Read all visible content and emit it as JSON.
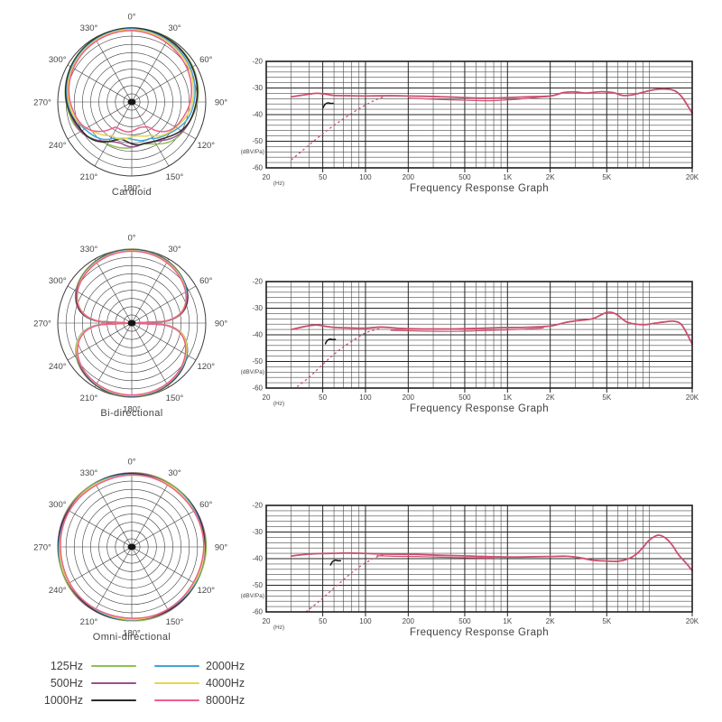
{
  "colors": {
    "grid": "#4b4b4b",
    "grid_major": "#242424",
    "frame": "#1d1d1d",
    "text": "#454545",
    "response_curve": "#cb4f6e",
    "marker": "#111111"
  },
  "legend": {
    "rows": [
      [
        {
          "label": "125Hz",
          "color": "#8fc054"
        },
        {
          "label": "2000Hz",
          "color": "#3fa5d8"
        }
      ],
      [
        {
          "label": "500Hz",
          "color": "#99508f"
        },
        {
          "label": "4000Hz",
          "color": "#e9d44f"
        }
      ],
      [
        {
          "label": "1000Hz",
          "color": "#2d2a2b"
        },
        {
          "label": "8000Hz",
          "color": "#ec5f8b"
        }
      ]
    ]
  },
  "chart_data": [
    {
      "type": "polar",
      "subtype": "cardioid",
      "title": "Cardioid",
      "rings": 9,
      "range_db": 45,
      "angle_labels": [
        "0°",
        "30°",
        "60°",
        "90°",
        "120°",
        "150°",
        "180°",
        "210°",
        "240°",
        "270°",
        "300°",
        "330°"
      ],
      "series": [
        {
          "name": "125Hz",
          "color": "#8fc054",
          "a": 0.56,
          "rear_db": -18,
          "scale": 1.0,
          "wig": 0.03,
          "asym": 0,
          "reardip": 0,
          "phase": 0.5
        },
        {
          "name": "500Hz",
          "color": "#99508f",
          "a": 0.55,
          "rear_db": -19,
          "scale": 0.996,
          "wig": 0.032,
          "asym": 0.005,
          "reardip": 0,
          "phase": 1.7
        },
        {
          "name": "1000Hz",
          "color": "#2d2a2b",
          "a": 0.54,
          "rear_db": -20,
          "scale": 1.0,
          "wig": 0.035,
          "asym": 0.01,
          "reardip": 0,
          "phase": 2.9
        },
        {
          "name": "2000Hz",
          "color": "#3fa5d8",
          "a": 0.52,
          "rear_db": -21,
          "scale": 0.988,
          "wig": 0.03,
          "asym": 0.025,
          "reardip": 0,
          "phase": 4.1
        },
        {
          "name": "4000Hz",
          "color": "#e9d44f",
          "a": 0.505,
          "rear_db": -22,
          "scale": 0.978,
          "wig": 0.035,
          "asym": 0.035,
          "reardip": 0,
          "phase": 5.3
        },
        {
          "name": "8000Hz",
          "color": "#ec5f8b",
          "a": 0.49,
          "rear_db": -23.5,
          "scale": 0.965,
          "wig": 0.032,
          "asym": 0.05,
          "reardip": 0.09,
          "phase": 0.9
        }
      ]
    },
    {
      "type": "line",
      "title": "Frequency Response Graph",
      "x_unit": "(Hz)",
      "y_unit": "(dBV/Pa)",
      "xlim": [
        20,
        20000
      ],
      "ylim": [
        -60,
        -20
      ],
      "grid_db_step": 2,
      "x_tick_values": [
        20,
        50,
        100,
        200,
        500,
        1000,
        2000,
        5000,
        20000
      ],
      "x_tick_labels": [
        "20",
        "50",
        "100",
        "200",
        "500",
        "1K",
        "2K",
        "5K",
        "20K"
      ],
      "y_tick_values": [
        -20,
        -30,
        -40,
        -50,
        -60
      ],
      "curve": [
        [
          30,
          -33.3
        ],
        [
          38,
          -32.5
        ],
        [
          45,
          -32
        ],
        [
          52,
          -32.3
        ],
        [
          60,
          -32.8
        ],
        [
          75,
          -32.9
        ],
        [
          100,
          -33
        ],
        [
          150,
          -32.9
        ],
        [
          200,
          -33
        ],
        [
          300,
          -33.2
        ],
        [
          450,
          -33.5
        ],
        [
          600,
          -33.8
        ],
        [
          800,
          -33.8
        ],
        [
          1000,
          -33.6
        ],
        [
          1400,
          -33.3
        ],
        [
          2000,
          -33
        ],
        [
          2500,
          -31.7
        ],
        [
          3000,
          -31.5
        ],
        [
          3600,
          -31.9
        ],
        [
          4500,
          -31.4
        ],
        [
          5500,
          -31.7
        ],
        [
          6500,
          -32.8
        ],
        [
          7500,
          -32.6
        ],
        [
          8000,
          -32.3
        ],
        [
          9500,
          -31.3
        ],
        [
          11000,
          -30.6
        ],
        [
          13000,
          -30.4
        ],
        [
          15000,
          -31
        ],
        [
          17000,
          -33.5
        ],
        [
          20000,
          -39.5
        ]
      ],
      "curve_b": [
        [
          200,
          -33.8
        ],
        [
          300,
          -34.2
        ],
        [
          500,
          -34.6
        ],
        [
          700,
          -34.8
        ],
        [
          900,
          -34.6
        ],
        [
          1200,
          -34.2
        ],
        [
          1600,
          -33.6
        ],
        [
          2000,
          -33.2
        ]
      ],
      "dashed": [
        [
          30,
          -57
        ],
        [
          36,
          -53.5
        ],
        [
          43,
          -50
        ],
        [
          52,
          -46.5
        ],
        [
          62,
          -43.5
        ],
        [
          75,
          -40.5
        ],
        [
          90,
          -37.8
        ],
        [
          105,
          -35.8
        ],
        [
          120,
          -34.3
        ],
        [
          135,
          -33.3
        ]
      ],
      "marker": [
        55,
        -36.5
      ]
    },
    {
      "type": "polar",
      "subtype": "figure8",
      "title": "Bi-directional",
      "rings": 9,
      "range_db": 45,
      "angle_labels": [
        "0°",
        "30°",
        "60°",
        "90°",
        "120°",
        "150°",
        "180°",
        "210°",
        "240°",
        "270°",
        "300°",
        "330°"
      ],
      "series": [
        {
          "name": "125Hz",
          "color": "#8fc054",
          "scale": 1.0,
          "phase": 0.4
        },
        {
          "name": "500Hz",
          "color": "#99508f",
          "scale": 0.995,
          "phase": 1.6
        },
        {
          "name": "1000Hz",
          "color": "#2d2a2b",
          "scale": 0.99,
          "phase": 2.8
        },
        {
          "name": "2000Hz",
          "color": "#3fa5d8",
          "scale": 0.985,
          "phase": 4.0
        },
        {
          "name": "4000Hz",
          "color": "#e9d44f",
          "scale": 0.978,
          "phase": 5.2
        },
        {
          "name": "8000Hz",
          "color": "#ec5f8b",
          "scale": 0.971,
          "phase": 0.8
        }
      ]
    },
    {
      "type": "line",
      "title": "Frequency Response Graph",
      "x_unit": "(Hz)",
      "y_unit": "(dBV/Pa)",
      "xlim": [
        20,
        20000
      ],
      "ylim": [
        -60,
        -20
      ],
      "grid_db_step": 2,
      "x_tick_values": [
        20,
        50,
        100,
        200,
        500,
        1000,
        2000,
        5000,
        20000
      ],
      "x_tick_labels": [
        "20",
        "50",
        "100",
        "200",
        "500",
        "1K",
        "2K",
        "5K",
        "20K"
      ],
      "y_tick_values": [
        -20,
        -30,
        -40,
        -50,
        -60
      ],
      "curve": [
        [
          30,
          -38
        ],
        [
          38,
          -36.8
        ],
        [
          45,
          -36.3
        ],
        [
          52,
          -36.8
        ],
        [
          60,
          -37.2
        ],
        [
          75,
          -37.4
        ],
        [
          100,
          -37.5
        ],
        [
          130,
          -37.1
        ],
        [
          180,
          -37.6
        ],
        [
          250,
          -37.8
        ],
        [
          400,
          -37.8
        ],
        [
          600,
          -37.6
        ],
        [
          900,
          -37.3
        ],
        [
          1300,
          -37.2
        ],
        [
          2000,
          -36.7
        ],
        [
          2600,
          -35.3
        ],
        [
          3200,
          -34.6
        ],
        [
          4000,
          -33.9
        ],
        [
          5000,
          -31.6
        ],
        [
          5800,
          -32.2
        ],
        [
          7000,
          -35.3
        ],
        [
          9000,
          -36.2
        ],
        [
          11000,
          -35.6
        ],
        [
          13000,
          -35.1
        ],
        [
          15000,
          -34.9
        ],
        [
          17000,
          -36.5
        ],
        [
          20000,
          -43.5
        ]
      ],
      "curve_b": [
        [
          150,
          -38.3
        ],
        [
          250,
          -38.6
        ],
        [
          400,
          -38.7
        ],
        [
          600,
          -38.5
        ],
        [
          900,
          -38.2
        ],
        [
          1300,
          -37.9
        ],
        [
          1800,
          -37.4
        ]
      ],
      "dashed": [
        [
          33,
          -59.5
        ],
        [
          40,
          -56
        ],
        [
          48,
          -52
        ],
        [
          58,
          -48
        ],
        [
          70,
          -44.5
        ],
        [
          85,
          -41.5
        ],
        [
          100,
          -39.3
        ],
        [
          115,
          -38.2
        ],
        [
          130,
          -37.5
        ]
      ],
      "marker": [
        57,
        -42.5
      ]
    },
    {
      "type": "polar",
      "subtype": "omni",
      "title": "Omni-directional",
      "rings": 9,
      "range_db": 45,
      "angle_labels": [
        "0°",
        "30°",
        "60°",
        "90°",
        "120°",
        "150°",
        "180°",
        "210°",
        "240°",
        "270°",
        "300°",
        "330°"
      ],
      "series": [
        {
          "name": "125Hz",
          "color": "#8fc054",
          "scale": 1.0,
          "wig": 0.006,
          "phase": 0.3
        },
        {
          "name": "500Hz",
          "color": "#99508f",
          "scale": 0.993,
          "wig": 0.006,
          "phase": 1.5
        },
        {
          "name": "1000Hz",
          "color": "#2d2a2b",
          "scale": 0.987,
          "wig": 0.006,
          "phase": 2.7
        },
        {
          "name": "2000Hz",
          "color": "#3fa5d8",
          "scale": 0.981,
          "wig": 0.006,
          "phase": 3.9
        },
        {
          "name": "4000Hz",
          "color": "#e9d44f",
          "scale": 0.975,
          "wig": 0.006,
          "phase": 5.1
        },
        {
          "name": "8000Hz",
          "color": "#ec5f8b",
          "scale": 0.968,
          "wig": 0.006,
          "phase": 0.7
        }
      ]
    },
    {
      "type": "line",
      "title": "Frequency Response Graph",
      "x_unit": "(Hz)",
      "y_unit": "(dBV/Pa)",
      "xlim": [
        20,
        20000
      ],
      "ylim": [
        -60,
        -20
      ],
      "grid_db_step": 2,
      "x_tick_values": [
        20,
        50,
        100,
        200,
        500,
        1000,
        2000,
        5000,
        20000
      ],
      "x_tick_labels": [
        "20",
        "50",
        "100",
        "200",
        "500",
        "1K",
        "2K",
        "5K",
        "20K"
      ],
      "y_tick_values": [
        -20,
        -30,
        -40,
        -50,
        -60
      ],
      "curve": [
        [
          30,
          -39
        ],
        [
          38,
          -38.4
        ],
        [
          48,
          -38.1
        ],
        [
          60,
          -38
        ],
        [
          75,
          -37.9
        ],
        [
          95,
          -38
        ],
        [
          120,
          -38.2
        ],
        [
          160,
          -38.3
        ],
        [
          220,
          -38.4
        ],
        [
          320,
          -38.7
        ],
        [
          450,
          -38.9
        ],
        [
          600,
          -39.1
        ],
        [
          800,
          -39.3
        ],
        [
          1100,
          -39.4
        ],
        [
          1500,
          -39.3
        ],
        [
          2000,
          -39.2
        ],
        [
          2600,
          -39.1
        ],
        [
          3200,
          -39.6
        ],
        [
          4000,
          -40.6
        ],
        [
          5000,
          -40.9
        ],
        [
          6000,
          -41
        ],
        [
          7000,
          -40.2
        ],
        [
          8000,
          -38.5
        ],
        [
          9000,
          -35.8
        ],
        [
          10000,
          -33
        ],
        [
          11500,
          -31.2
        ],
        [
          13000,
          -32.3
        ],
        [
          14500,
          -35
        ],
        [
          16000,
          -38.5
        ],
        [
          18000,
          -41.5
        ],
        [
          20000,
          -44.5
        ]
      ],
      "curve_b": [
        [
          120,
          -38.9
        ],
        [
          160,
          -39.1
        ],
        [
          220,
          -39.2
        ],
        [
          320,
          -39.4
        ],
        [
          450,
          -39.6
        ],
        [
          600,
          -39.7
        ],
        [
          800,
          -39.8
        ]
      ],
      "dashed": [
        [
          38,
          -60
        ],
        [
          46,
          -56.5
        ],
        [
          56,
          -52.5
        ],
        [
          68,
          -48.5
        ],
        [
          82,
          -44.8
        ],
        [
          95,
          -42.3
        ],
        [
          108,
          -40.6
        ],
        [
          122,
          -39.2
        ],
        [
          138,
          -38.4
        ]
      ],
      "marker": [
        62,
        -41.5
      ]
    }
  ]
}
